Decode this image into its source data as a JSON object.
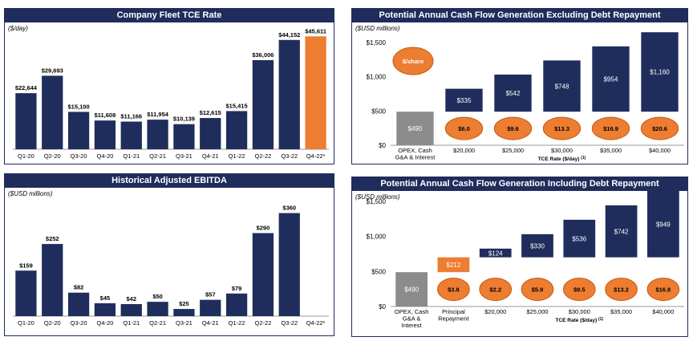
{
  "chart_data": [
    {
      "id": "tce",
      "type": "bar",
      "title": "Company Fleet TCE Rate",
      "unit_label": "($/day)",
      "categories": [
        "Q1-20",
        "Q2-20",
        "Q3-20",
        "Q4-20",
        "Q1-21",
        "Q2-21",
        "Q3-21",
        "Q4-21",
        "Q1-22",
        "Q2-22",
        "Q3-22",
        "Q4-22*"
      ],
      "values": [
        22644,
        29693,
        15100,
        11608,
        11166,
        11954,
        10139,
        12615,
        15415,
        36006,
        44152,
        45611
      ],
      "labels": [
        "$22,644",
        "$29,693",
        "$15,100",
        "$11,608",
        "$11,166",
        "$11,954",
        "$10,139",
        "$12,615",
        "$15,415",
        "$36,006",
        "$44,152",
        "$45,611"
      ],
      "highlight_index": 11,
      "colors": {
        "bar": "#1f2d5c",
        "highlight": "#ed7d31"
      }
    },
    {
      "id": "ebitda",
      "type": "bar",
      "title": "Historical Adjusted EBITDA",
      "unit_label": "($USD millions)",
      "categories": [
        "Q1-20",
        "Q2-20",
        "Q3-20",
        "Q4-20",
        "Q1-21",
        "Q2-21",
        "Q3-21",
        "Q4-21",
        "Q1-22",
        "Q2-22",
        "Q3-22",
        "Q4-22*"
      ],
      "values": [
        159,
        252,
        82,
        45,
        42,
        50,
        25,
        57,
        79,
        290,
        360,
        null
      ],
      "labels": [
        "$159",
        "$252",
        "$82",
        "$45",
        "$42",
        "$50",
        "$25",
        "$57",
        "$79",
        "$290",
        "$360",
        ""
      ],
      "colors": {
        "bar": "#1f2d5c"
      }
    },
    {
      "id": "cf_ex",
      "type": "bar",
      "title": "Potential Annual Cash Flow Generation Excluding Debt Repayment",
      "unit_label": "($USD millions)",
      "ylim": [
        0,
        1500
      ],
      "yticks": [
        0,
        500,
        1000,
        1500
      ],
      "ytick_labels": [
        "$0",
        "$500",
        "$1,000",
        "$1,500"
      ],
      "xlabel": "TCE Rate ($/day)",
      "xlabel_note": "(1)",
      "bubble_label": "$/share",
      "categories": [
        "OPEX, Cash G&A & Interest",
        "$20,000",
        "$25,000",
        "$30,000",
        "$35,000",
        "$40,000"
      ],
      "base": {
        "value": 490,
        "label": "$490"
      },
      "cash_flow": [
        335,
        542,
        748,
        954,
        1160
      ],
      "cash_flow_labels": [
        "$335",
        "$542",
        "$748",
        "$954",
        "$1,160"
      ],
      "per_share": [
        "$6.0",
        "$9.6",
        "$13.3",
        "$16.9",
        "$20.6"
      ],
      "colors": {
        "bar": "#1f2d5c",
        "base": "#8c8c8c",
        "bubble": "#ed7d31"
      }
    },
    {
      "id": "cf_in",
      "type": "bar",
      "title": "Potential Annual Cash Flow Generation Including Debt Repayment",
      "unit_label": "($USD millions)",
      "ylim": [
        0,
        1500
      ],
      "yticks": [
        0,
        500,
        1000,
        1500
      ],
      "ytick_labels": [
        "$0",
        "$500",
        "$1,000",
        "$1,500"
      ],
      "xlabel": "TCE Rate ($/day)",
      "xlabel_note": "(1)",
      "categories": [
        "OPEX, Cash G&A & Interest",
        "Principal Repayment",
        "$20,000",
        "$25,000",
        "$30,000",
        "$35,000",
        "$40,000"
      ],
      "base": {
        "value": 490,
        "label": "$490"
      },
      "principal": {
        "value": 212,
        "label": "$212",
        "per_share": "$3.8"
      },
      "cash_flow": [
        124,
        330,
        536,
        742,
        949
      ],
      "cash_flow_labels": [
        "$124",
        "$330",
        "$536",
        "$742",
        "$949"
      ],
      "per_share": [
        "$2.2",
        "$5.9",
        "$9.5",
        "$13.2",
        "$16.8"
      ],
      "colors": {
        "bar": "#1f2d5c",
        "base": "#8c8c8c",
        "bubble": "#ed7d31",
        "principal": "#ed7d31"
      }
    }
  ]
}
